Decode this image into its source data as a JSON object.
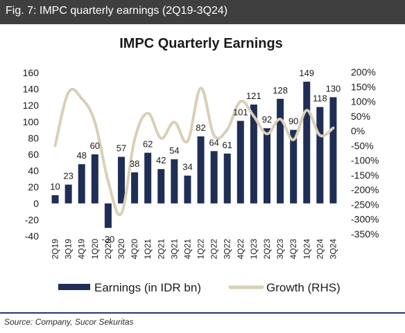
{
  "header": {
    "title": "Fig. 7: IMPC quarterly earnings (2Q19-3Q24)"
  },
  "footer": {
    "source": "Source: Company, Sucor Sekuritas"
  },
  "colors": {
    "bar": "#1f2e55",
    "line": "#d9cfb8",
    "header_bg": "#3f3f3f",
    "rule": "#1d3a6b"
  },
  "chart_data": {
    "type": "bar",
    "title": "IMPC Quarterly Earnings",
    "categories": [
      "2Q19",
      "3Q19",
      "4Q19",
      "1Q20",
      "2Q20",
      "3Q20",
      "4Q20",
      "1Q21",
      "2Q21",
      "3Q21",
      "4Q21",
      "1Q22",
      "2Q22",
      "3Q22",
      "4Q22",
      "1Q23",
      "2Q23",
      "3Q23",
      "4Q23",
      "1Q24",
      "2Q24",
      "3Q24"
    ],
    "series": [
      {
        "name": "Earnings (in IDR bn)",
        "type": "bar",
        "axis": "left",
        "values": [
          10,
          23,
          48,
          60,
          -30,
          57,
          38,
          62,
          42,
          54,
          34,
          82,
          64,
          61,
          101,
          121,
          92,
          128,
          90,
          149,
          118,
          130
        ]
      },
      {
        "name": "Growth (RHS)",
        "type": "line",
        "axis": "right",
        "values": [
          -50,
          130,
          110,
          30,
          -170,
          -280,
          -30,
          60,
          -25,
          30,
          -35,
          145,
          -15,
          5,
          100,
          50,
          -10,
          40,
          -30,
          70,
          -15,
          10
        ]
      }
    ],
    "ylim_left": [
      -40,
      160
    ],
    "yticks_left": [
      "-40",
      "-20",
      "0",
      "20",
      "40",
      "60",
      "80",
      "100",
      "120",
      "140",
      "160"
    ],
    "ylim_right": [
      -350,
      200
    ],
    "yticks_right": [
      "-350%",
      "-300%",
      "-250%",
      "-200%",
      "-150%",
      "-100%",
      "-50%",
      "0%",
      "50%",
      "100%",
      "150%",
      "200%"
    ],
    "grid": false,
    "legend_position": "bottom"
  }
}
